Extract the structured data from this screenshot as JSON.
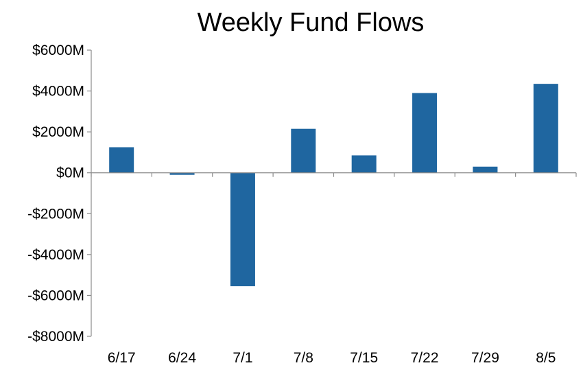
{
  "chart_data": {
    "type": "bar",
    "title": "Weekly Fund Flows",
    "xlabel": "",
    "ylabel": "",
    "categories": [
      "6/17",
      "6/24",
      "7/1",
      "7/8",
      "7/15",
      "7/22",
      "7/29",
      "8/5"
    ],
    "series": [
      {
        "values": [
          1250,
          -100,
          -5550,
          2150,
          850,
          3900,
          300,
          4350
        ]
      }
    ],
    "ylim": [
      -8000,
      6000
    ],
    "yticks": [
      6000,
      4000,
      2000,
      0,
      -2000,
      -4000,
      -6000,
      -8000
    ],
    "ytick_labels": [
      "$6000M",
      "$4000M",
      "$2000M",
      "$0M",
      "-$2000M",
      "-$4000M",
      "-$6000M",
      "-$8000M"
    ],
    "grid": false,
    "legend": "none",
    "colors": {
      "bar": "#1f66a0",
      "axis": "#8c8c8c",
      "text": "#000000"
    }
  }
}
